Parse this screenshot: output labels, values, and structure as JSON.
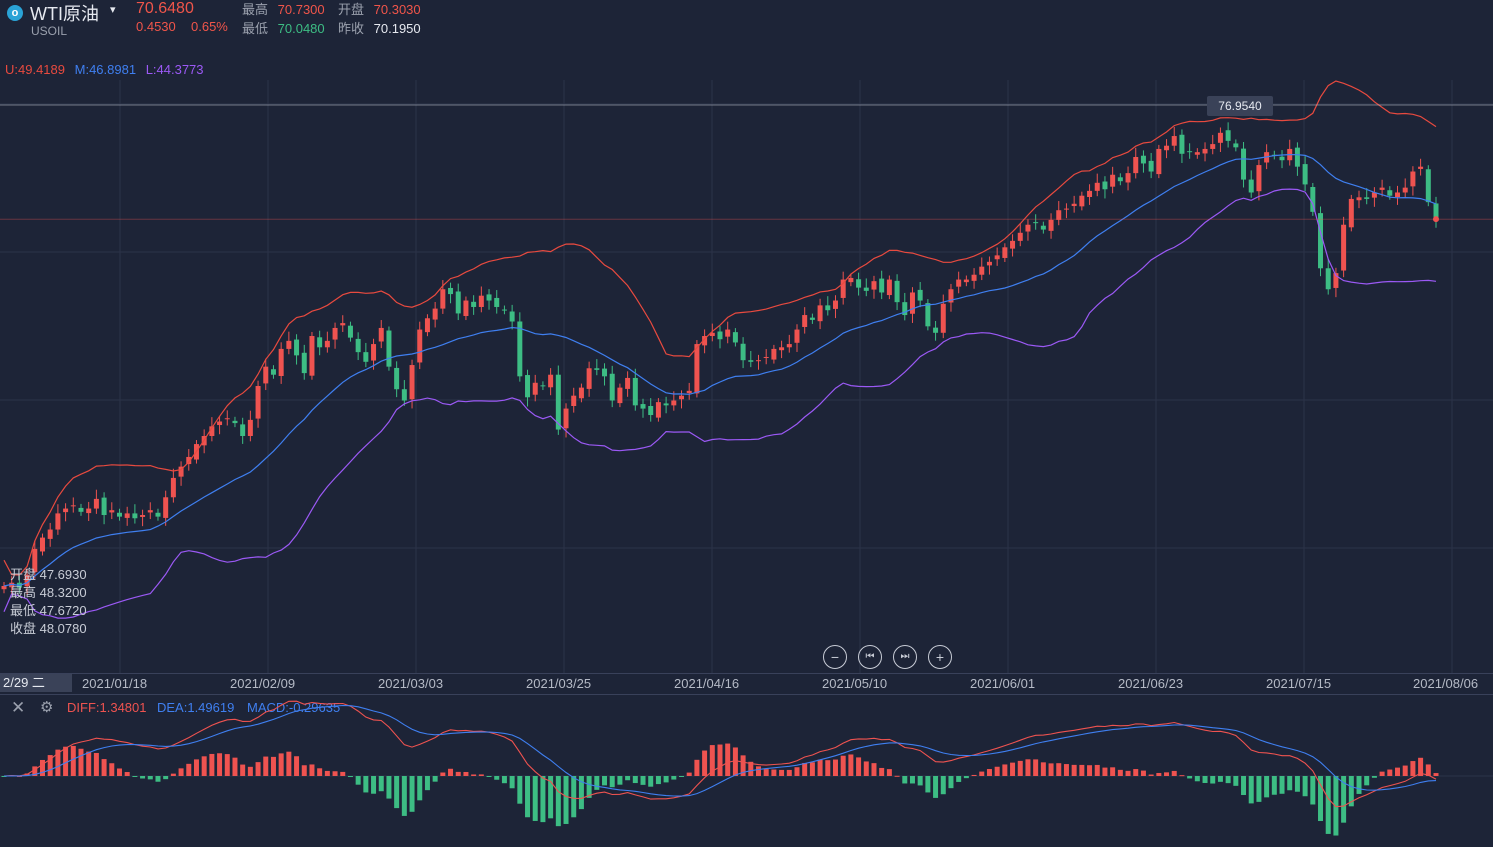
{
  "header": {
    "icon_glyph": "o",
    "symbol_name": "WTI原油",
    "caret": "▾",
    "symbol_code": "USOIL",
    "last_price": "70.6480",
    "change": "0.4530",
    "change_pct": "0.65%",
    "high_label": "最高",
    "high_value": "70.7300",
    "open_label": "开盘",
    "open_value": "70.3030",
    "low_label": "最低",
    "low_value": "70.0480",
    "prev_close_label": "昨收",
    "prev_close_value": "70.1950"
  },
  "bb_legend": {
    "upper": "U:49.4189",
    "middle": "M:46.8981",
    "lower": "L:44.3773"
  },
  "crosshair_ohlc": {
    "open": "开盘 47.6930",
    "high": "最高 48.3200",
    "low": "最低 47.6720",
    "close": "收盘 48.0780"
  },
  "max_price_tag": "76.9540",
  "cursor_date": "2/29 二",
  "x_ticks": [
    "2021/01/18",
    "2021/02/09",
    "2021/03/03",
    "2021/03/25",
    "2021/04/16",
    "2021/05/10",
    "2021/06/01",
    "2021/06/23",
    "2021/07/15",
    "2021/08/06"
  ],
  "macd_legend": {
    "diff": "DIFF:1.34801",
    "dea": "DEA:1.49619",
    "macd": "MACD:-0.29635"
  },
  "nav": {
    "zoom_out": "−",
    "prev": "⏮",
    "next": "⏭",
    "zoom_in": "+"
  },
  "colors": {
    "background": "#1d2437",
    "up": "#ef5350",
    "down": "#3dbd84",
    "bb_upper": "#e84a3f",
    "bb_middle": "#3f7ff0",
    "bb_lower": "#9b59f5",
    "diff": "#ef5350",
    "dea": "#3f7ff0"
  },
  "chart_data": [
    {
      "type": "candlestick",
      "name": "USOIL",
      "dates_start": "2021/01/05",
      "candles": [],
      "bands": {
        "upper": "U",
        "middle": "M",
        "lower": "L"
      },
      "ylim": [
        43,
        78
      ]
    },
    {
      "type": "bar+line",
      "name": "MACD"
    }
  ]
}
